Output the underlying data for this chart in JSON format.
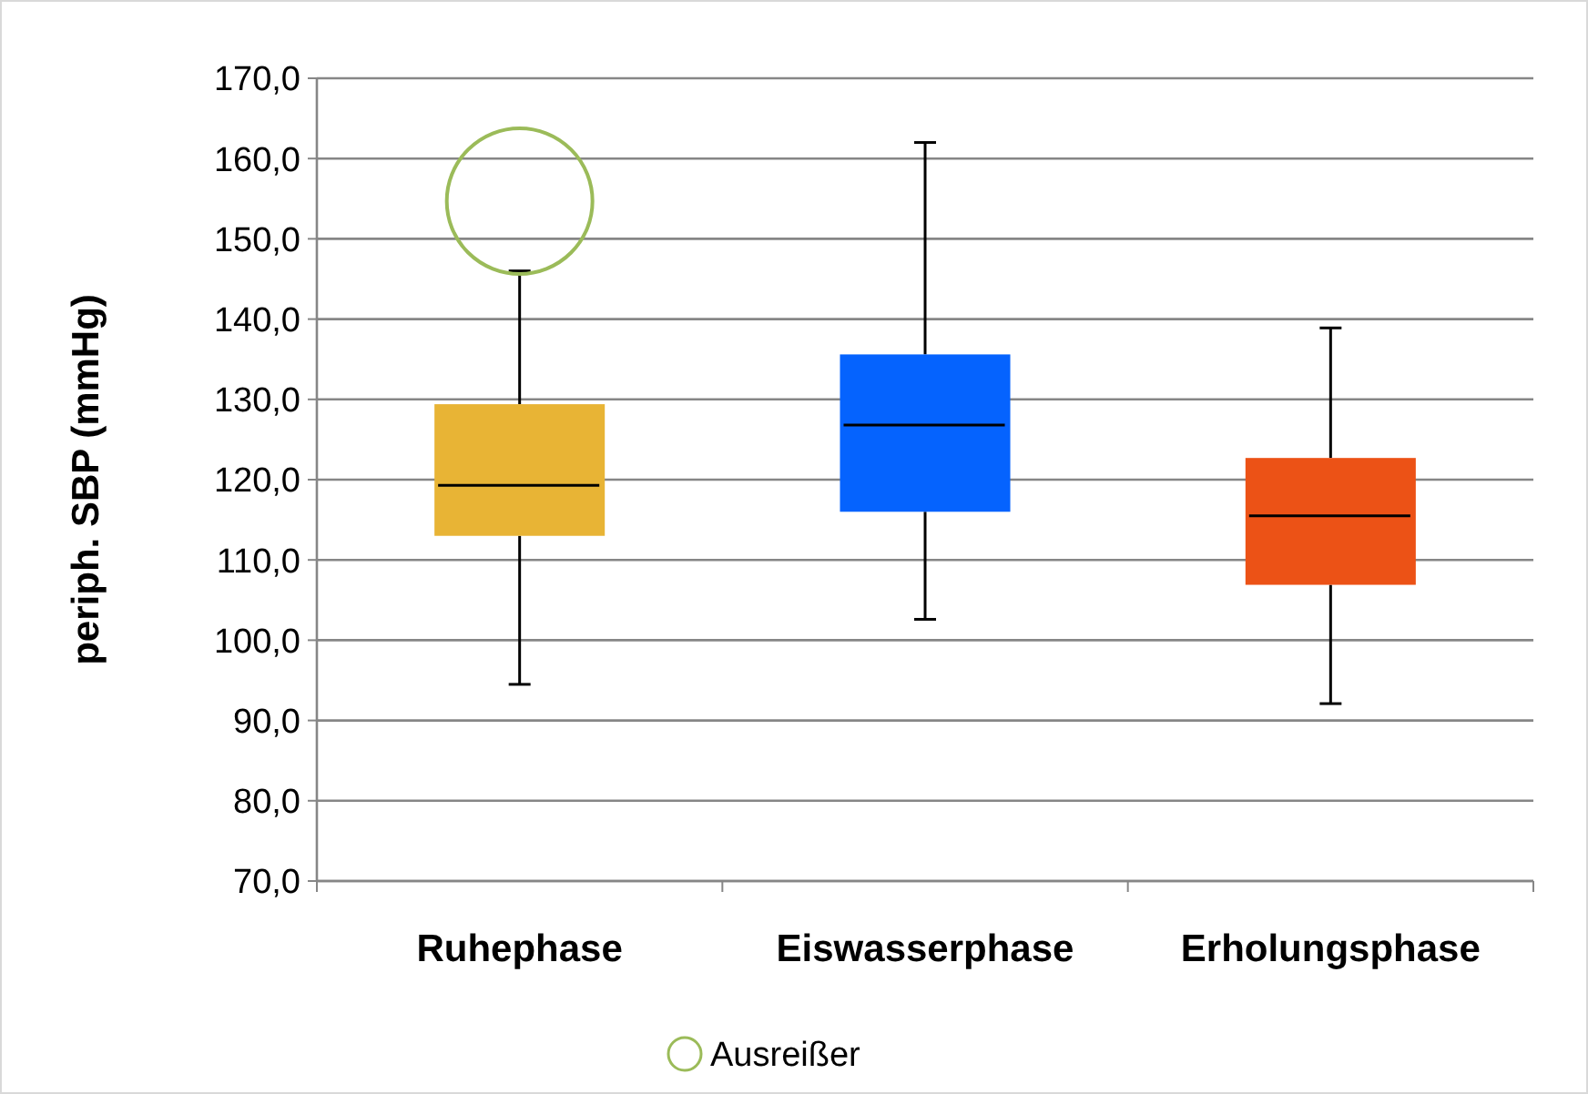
{
  "chart_data": {
    "type": "box",
    "ylabel": "periph. SBP (mmHg)",
    "categories": [
      "Ruhephase",
      "Eiswasserphase",
      "Erholungsphase"
    ],
    "colors": [
      "#e8b435",
      "#0563fe",
      "#ec5216"
    ],
    "boxes": [
      {
        "low": 94.5,
        "q1": 113.0,
        "median": 119.3,
        "q3": 129.4,
        "high": 146.0
      },
      {
        "low": 102.6,
        "q1": 116.0,
        "median": 126.8,
        "q3": 135.6,
        "high": 162.0
      },
      {
        "low": 92.1,
        "q1": 106.9,
        "median": 115.5,
        "q3": 122.7,
        "high": 138.9
      }
    ],
    "series": [
      {
        "type": "scatter",
        "name": "Ausreißer",
        "color": "#9bbb59",
        "x": [
          "Ruhephase"
        ],
        "values": [
          154.7
        ],
        "marker": "circle"
      }
    ],
    "ylim": [
      70,
      170
    ],
    "yticks": [
      {
        "value": 70,
        "label": "70,0"
      },
      {
        "value": 80,
        "label": "80,0"
      },
      {
        "value": 90,
        "label": "90,0"
      },
      {
        "value": 100,
        "label": "100,0"
      },
      {
        "value": 110,
        "label": "110,0"
      },
      {
        "value": 120,
        "label": "120,0"
      },
      {
        "value": 130,
        "label": "130,0"
      },
      {
        "value": 140,
        "label": "140,0"
      },
      {
        "value": 150,
        "label": "150,0"
      },
      {
        "value": 160,
        "label": "160,0"
      },
      {
        "value": 170,
        "label": "170,0"
      }
    ],
    "grid": "y",
    "legend": "bottom"
  }
}
